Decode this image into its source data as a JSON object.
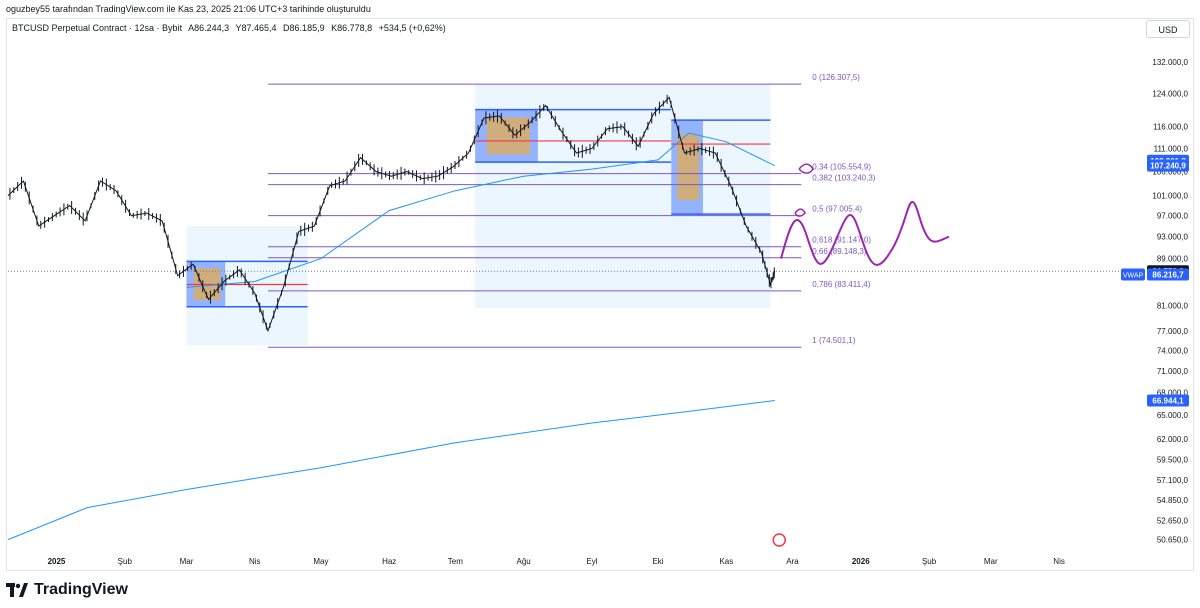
{
  "attribution": "oguzbey55 tarafından TradingView.com ile Kas 23, 2025 21:06 UTC+3 tarihinde oluşturuldu",
  "symbol": {
    "name": "BTCUSD Perpetual Contract · 12sa · Bybit",
    "open": "A86.244,3",
    "high": "Y87.465,4",
    "low": "D86.185,9",
    "close": "K86.778,8",
    "change": "+534,5 (+0,62%)"
  },
  "currency": "USD",
  "footer": {
    "brand": "TradingView",
    "logo_icon": "tradingview-logo-icon"
  },
  "colors": {
    "candle": "#131722",
    "vwap": "#2196f3",
    "fib": "#7e57c2",
    "profile_blue": "#2962ff",
    "profile_orange": "#f9a825",
    "poc": "#f23645",
    "drawing": "#9c27b0",
    "badge_dark": "#131722",
    "badge_blue": "#2962ff"
  },
  "chart_data": {
    "type": "line",
    "title": "",
    "x_ticks": [
      "2025",
      "Şub",
      "Mar",
      "Nis",
      "May",
      "Haz",
      "Tem",
      "Ağu",
      "Eyl",
      "Eki",
      "Kas",
      "Ara",
      "2026",
      "Şub",
      "Mar",
      "Nis"
    ],
    "y_ticks": [
      "132.000,0",
      "124.000,0",
      "116.000,0",
      "111.000,0",
      "106.000,0",
      "101.000,0",
      "97.000,0",
      "93.000,0",
      "89.000,0",
      "81.000,0",
      "77.000,0",
      "74.000,0",
      "71.000,0",
      "68.000,0",
      "65.000,0",
      "62.000,0",
      "59.500,0",
      "57.100,0",
      "54.850,0",
      "52.650,0",
      "50.650,0"
    ],
    "y_tick_values": [
      132000,
      124000,
      116000,
      111000,
      106000,
      101000,
      97000,
      93000,
      89000,
      81000,
      77000,
      74000,
      71000,
      68000,
      65000,
      62000,
      59500,
      57100,
      54850,
      52650,
      50650
    ],
    "scale": "log",
    "ylim": [
      49800,
      138000
    ],
    "series": [
      {
        "role": "price",
        "x": [
          "2024-12-10",
          "2024-12-17",
          "2024-12-24",
          "2024-12-31",
          "2025-01-07",
          "2025-01-14",
          "2025-01-21",
          "2025-01-28",
          "2025-02-04",
          "2025-02-11",
          "2025-02-18",
          "2025-02-25",
          "2025-03-04",
          "2025-03-11",
          "2025-03-18",
          "2025-03-25",
          "2025-04-01",
          "2025-04-07",
          "2025-04-14",
          "2025-04-21",
          "2025-04-28",
          "2025-05-05",
          "2025-05-12",
          "2025-05-19",
          "2025-05-26",
          "2025-06-02",
          "2025-06-09",
          "2025-06-16",
          "2025-06-23",
          "2025-06-30",
          "2025-07-07",
          "2025-07-14",
          "2025-07-21",
          "2025-07-28",
          "2025-08-04",
          "2025-08-11",
          "2025-08-18",
          "2025-08-25",
          "2025-09-01",
          "2025-09-08",
          "2025-09-15",
          "2025-09-22",
          "2025-09-29",
          "2025-10-06",
          "2025-10-13",
          "2025-10-20",
          "2025-10-27",
          "2025-11-03",
          "2025-11-10",
          "2025-11-17",
          "2025-11-21",
          "2025-11-23"
        ],
        "values": [
          101000,
          104000,
          95000,
          97000,
          99000,
          96000,
          104000,
          102000,
          97000,
          97500,
          96000,
          86000,
          88000,
          82000,
          85000,
          87000,
          83000,
          77000,
          84000,
          94000,
          95000,
          103000,
          104000,
          109000,
          106000,
          105000,
          106000,
          104500,
          105000,
          107000,
          110000,
          118000,
          118500,
          114000,
          117000,
          121000,
          115000,
          110000,
          111000,
          115500,
          116000,
          111500,
          119000,
          123000,
          110000,
          111000,
          110000,
          103000,
          95000,
          90000,
          84500,
          86778.8
        ]
      },
      {
        "role": "vwap-anchored",
        "x": [
          "2025-03-01",
          "2025-04-01",
          "2025-05-01",
          "2025-06-01",
          "2025-07-01",
          "2025-08-01",
          "2025-09-01",
          "2025-10-01",
          "2025-10-15",
          "2025-11-01",
          "2025-11-23"
        ],
        "values": [
          84000,
          85000,
          89000,
          98000,
          102000,
          105000,
          106500,
          108500,
          114500,
          112500,
          107240.9
        ]
      },
      {
        "role": "vwap-long",
        "x": [
          "2024-12-10",
          "2025-01-15",
          "2025-03-01",
          "2025-05-01",
          "2025-07-01",
          "2025-09-01",
          "2025-10-15",
          "2025-11-23"
        ],
        "values": [
          50650,
          54000,
          56000,
          58500,
          61500,
          64000,
          65500,
          66944.1
        ]
      }
    ],
    "fibonacci": [
      {
        "level": "0",
        "value": "126.307,5"
      },
      {
        "level": "0,34",
        "value": "105.554,9"
      },
      {
        "level": "0,382",
        "value": "103.240,3"
      },
      {
        "level": "0,5",
        "value": "97.005,4"
      },
      {
        "level": "0,618",
        "value": "91.147,0"
      },
      {
        "level": "0,66",
        "value": "89.148,3"
      },
      {
        "level": "0,786",
        "value": "83.411,4"
      },
      {
        "level": "1",
        "value": "74.501,1"
      }
    ],
    "fib_values": [
      126307.5,
      105554.9,
      103240.3,
      97005.4,
      91147.0,
      89148.3,
      83411.4,
      74501.1
    ],
    "price_badges": [
      {
        "label": "",
        "value": "108.301,8",
        "price": 108301.8
      },
      {
        "label": "",
        "value": "107.240,9",
        "price": 107240.9
      },
      {
        "label": "",
        "value": "86.778,8",
        "price": 86778.8
      },
      {
        "label": "VWAP",
        "value": "86.216,7",
        "price": 86216.7
      },
      {
        "label": "",
        "value": "66.944,1",
        "price": 66944.1
      }
    ]
  }
}
